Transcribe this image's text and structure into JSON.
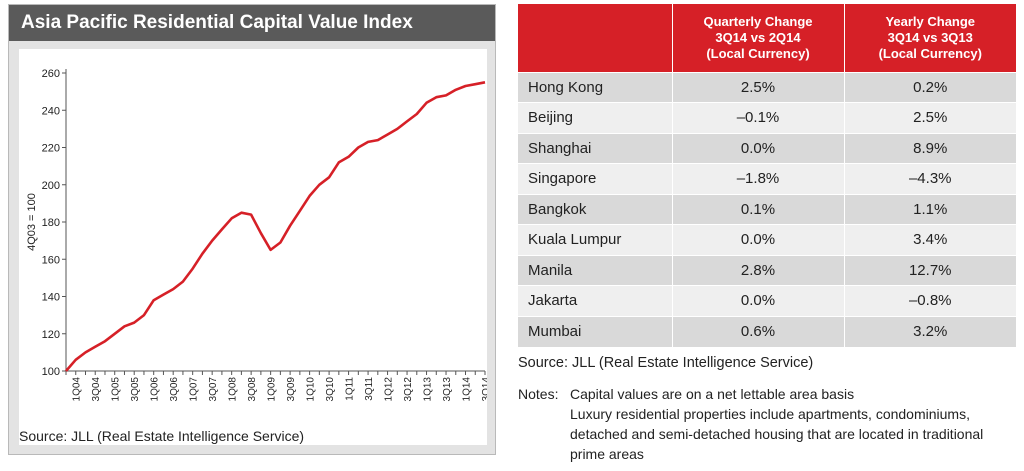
{
  "chart_panel": {
    "title": "Asia Pacific Residential Capital Value Index",
    "source": "Source: JLL (Real Estate Intelligence Service)"
  },
  "colors": {
    "line": "#d62027",
    "header_bg": "#5a5a5a",
    "table_header": "#d62027"
  },
  "chart_data": {
    "type": "line",
    "title": "Asia Pacific Residential Capital Value Index",
    "xlabel": "",
    "ylabel": "4Q03 = 100",
    "ylim": [
      100,
      260
    ],
    "yticks": [
      100,
      120,
      140,
      160,
      180,
      200,
      220,
      240,
      260
    ],
    "xtick_labels": [
      "1Q04",
      "3Q04",
      "1Q05",
      "3Q05",
      "1Q06",
      "3Q06",
      "1Q07",
      "3Q07",
      "1Q08",
      "3Q08",
      "1Q09",
      "3Q09",
      "1Q10",
      "3Q10",
      "1Q11",
      "3Q11",
      "1Q12",
      "3Q12",
      "1Q13",
      "3Q13",
      "1Q14",
      "3Q14"
    ],
    "x": [
      "4Q03",
      "1Q04",
      "2Q04",
      "3Q04",
      "4Q04",
      "1Q05",
      "2Q05",
      "3Q05",
      "4Q05",
      "1Q06",
      "2Q06",
      "3Q06",
      "4Q06",
      "1Q07",
      "2Q07",
      "3Q07",
      "4Q07",
      "1Q08",
      "2Q08",
      "3Q08",
      "4Q08",
      "1Q09",
      "2Q09",
      "3Q09",
      "4Q09",
      "1Q10",
      "2Q10",
      "3Q10",
      "4Q10",
      "1Q11",
      "2Q11",
      "3Q11",
      "4Q11",
      "1Q12",
      "2Q12",
      "3Q12",
      "4Q12",
      "1Q13",
      "2Q13",
      "3Q13",
      "4Q13",
      "1Q14",
      "2Q14",
      "3Q14"
    ],
    "series": [
      {
        "name": "Asia Pacific Residential Capital Value Index",
        "values": [
          100,
          106,
          110,
          113,
          116,
          120,
          124,
          126,
          130,
          138,
          141,
          144,
          148,
          155,
          163,
          170,
          176,
          182,
          185,
          184,
          174,
          165,
          169,
          178,
          186,
          194,
          200,
          204,
          212,
          215,
          220,
          223,
          224,
          227,
          230,
          234,
          238,
          244,
          247,
          248,
          251,
          253,
          254,
          255
        ]
      }
    ]
  },
  "table": {
    "headers": [
      "",
      [
        "Quarterly Change",
        "3Q14 vs 2Q14",
        "(Local Currency)"
      ],
      [
        "Yearly Change",
        "3Q14 vs 3Q13",
        "(Local Currency)"
      ]
    ],
    "rows": [
      [
        "Hong Kong",
        "2.5%",
        "0.2%"
      ],
      [
        "Beijing",
        "–0.1%",
        "2.5%"
      ],
      [
        "Shanghai",
        "0.0%",
        "8.9%"
      ],
      [
        "Singapore",
        "–1.8%",
        "–4.3%"
      ],
      [
        "Bangkok",
        "0.1%",
        "1.1%"
      ],
      [
        "Kuala Lumpur",
        "0.0%",
        "3.4%"
      ],
      [
        "Manila",
        "2.8%",
        "12.7%"
      ],
      [
        "Jakarta",
        "0.0%",
        "–0.8%"
      ],
      [
        "Mumbai",
        "0.6%",
        "3.2%"
      ]
    ],
    "source": "Source: JLL (Real Estate Intelligence Service)",
    "notes_label": "Notes:",
    "notes_lines": [
      "Capital values are on a net lettable area basis",
      "Luxury residential properties include apartments, condominiums,",
      "detached and semi-detached housing that are located in traditional",
      "prime areas"
    ]
  }
}
